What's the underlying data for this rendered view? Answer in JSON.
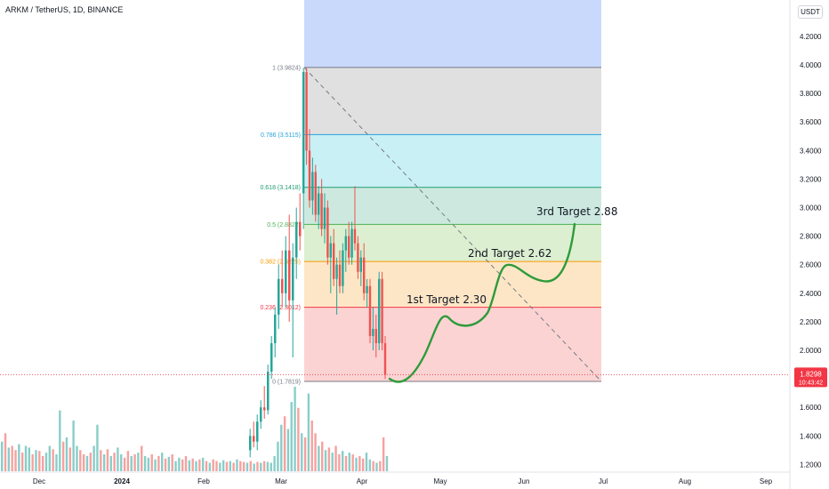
{
  "header": {
    "title": "ARKM / TetherUS, 1D, BINANCE",
    "unit": "USDT"
  },
  "price_badge": {
    "value": "1.8298",
    "countdown": "10:43:42",
    "color": "#f23645"
  },
  "colors": {
    "up": "#26a69a",
    "down": "#ef5350",
    "path": "#2e9b3a"
  },
  "chart_data": {
    "type": "candlestick",
    "title": "ARKM / TetherUS, 1D, BINANCE",
    "y_axis": {
      "ticks": [
        "4.2000",
        "4.0000",
        "3.8000",
        "3.6000",
        "3.4000",
        "3.2000",
        "3.0000",
        "2.8000",
        "2.6000",
        "2.4000",
        "2.2000",
        "2.0000",
        "1.8000",
        "1.6000",
        "1.4000",
        "1.2000"
      ],
      "range": [
        1.18,
        4.4
      ]
    },
    "x_axis": {
      "ticks": [
        "Dec",
        "2024",
        "Feb",
        "Mar",
        "Apr",
        "May",
        "Jun",
        "Jul",
        "Aug",
        "Sep"
      ]
    },
    "last_price": 1.8298,
    "fibonacci": [
      {
        "level": "1",
        "price": 3.9824,
        "label": "1 (3.9824)",
        "color": "#787b86",
        "fill": "#e0e0e0"
      },
      {
        "level": "0.786",
        "price": 3.5115,
        "label": "0.786 (3.5115)",
        "color": "#26a2d9",
        "fill": "#c9f0f5"
      },
      {
        "level": "0.618",
        "price": 3.1418,
        "label": "0.618 (3.1418)",
        "color": "#1e9b6e",
        "fill": "#cde9df"
      },
      {
        "level": "0.5",
        "price": 2.8822,
        "label": "0.5 (2.8822)",
        "color": "#4caf50",
        "fill": "#dcefd0"
      },
      {
        "level": "0.382",
        "price": 2.6225,
        "label": "0.382 (2.6225)",
        "color": "#ff9800",
        "fill": "#fde6c6"
      },
      {
        "level": "0.236",
        "price": 2.3012,
        "label": "0.236 (2.3012)",
        "color": "#f23645",
        "fill": "#fbd3d3"
      },
      {
        "level": "0",
        "price": 1.7819,
        "label": "0 (1.7819)",
        "color": "#787b86",
        "fill": "#fbd3d3"
      }
    ],
    "fib_extension_fill": "#c8d9fb",
    "targets": [
      {
        "label": "1st Target 2.30",
        "price": 2.3
      },
      {
        "label": "2nd Target 2.62",
        "price": 2.62
      },
      {
        "label": "3rd Target 2.88",
        "price": 2.88
      }
    ],
    "candles": [
      {
        "o": 3.1,
        "h": 3.98,
        "l": 2.85,
        "c": 3.95
      },
      {
        "o": 3.95,
        "h": 3.98,
        "l": 3.3,
        "c": 3.4
      },
      {
        "o": 3.4,
        "h": 3.55,
        "l": 3.0,
        "c": 3.05
      },
      {
        "o": 3.05,
        "h": 3.35,
        "l": 2.95,
        "c": 3.25
      },
      {
        "o": 3.25,
        "h": 3.3,
        "l": 2.9,
        "c": 2.95
      },
      {
        "o": 2.95,
        "h": 3.15,
        "l": 2.85,
        "c": 3.1
      },
      {
        "o": 3.1,
        "h": 3.2,
        "l": 2.8,
        "c": 2.85
      },
      {
        "o": 2.85,
        "h": 3.1,
        "l": 2.75,
        "c": 3.0
      },
      {
        "o": 3.0,
        "h": 3.05,
        "l": 2.6,
        "c": 2.65
      },
      {
        "o": 2.65,
        "h": 2.8,
        "l": 2.4,
        "c": 2.75
      },
      {
        "o": 2.75,
        "h": 2.85,
        "l": 2.45,
        "c": 2.5
      },
      {
        "o": 2.5,
        "h": 2.65,
        "l": 2.25,
        "c": 2.6
      },
      {
        "o": 2.6,
        "h": 2.7,
        "l": 2.4,
        "c": 2.45
      },
      {
        "o": 2.45,
        "h": 2.75,
        "l": 2.4,
        "c": 2.7
      },
      {
        "o": 2.7,
        "h": 2.85,
        "l": 2.55,
        "c": 2.8
      },
      {
        "o": 2.8,
        "h": 2.9,
        "l": 2.6,
        "c": 2.65
      },
      {
        "o": 2.65,
        "h": 2.9,
        "l": 2.6,
        "c": 2.85
      },
      {
        "o": 2.85,
        "h": 3.15,
        "l": 2.7,
        "c": 2.75
      },
      {
        "o": 2.75,
        "h": 2.8,
        "l": 2.5,
        "c": 2.55
      },
      {
        "o": 2.55,
        "h": 2.7,
        "l": 2.45,
        "c": 2.65
      },
      {
        "o": 2.65,
        "h": 2.75,
        "l": 2.35,
        "c": 2.4
      },
      {
        "o": 2.4,
        "h": 2.5,
        "l": 2.3,
        "c": 2.45
      },
      {
        "o": 2.45,
        "h": 2.5,
        "l": 2.05,
        "c": 2.1
      },
      {
        "o": 2.1,
        "h": 2.3,
        "l": 2.0,
        "c": 2.15
      },
      {
        "o": 2.15,
        "h": 2.25,
        "l": 1.95,
        "c": 2.05
      },
      {
        "o": 2.05,
        "h": 2.55,
        "l": 2.0,
        "c": 2.5
      },
      {
        "o": 2.5,
        "h": 2.55,
        "l": 2.0,
        "c": 2.05
      },
      {
        "o": 2.05,
        "h": 2.1,
        "l": 1.8,
        "c": 1.83
      }
    ],
    "volume": [
      0.35,
      0.45,
      0.28,
      0.3,
      0.25,
      0.32,
      0.22,
      0.3,
      0.28,
      0.2,
      0.25,
      0.24,
      0.18,
      0.22,
      0.3,
      0.26,
      0.2,
      0.72,
      0.35,
      0.4,
      0.28,
      0.6,
      0.3,
      0.25,
      0.2,
      0.18,
      0.22,
      0.3,
      0.55,
      0.25,
      0.2,
      0.26,
      0.18,
      0.22,
      0.28,
      0.2,
      0.16,
      0.24,
      0.18,
      0.2,
      0.22,
      0.3,
      0.18,
      0.16,
      0.2,
      0.14,
      0.18,
      0.22,
      0.15,
      0.17,
      0.2,
      0.12,
      0.16,
      0.14,
      0.18,
      0.13,
      0.15,
      0.12,
      0.14,
      0.16,
      0.12,
      0.1,
      0.14,
      0.12,
      0.1,
      0.13,
      0.11,
      0.12,
      0.1,
      0.14,
      0.12,
      0.11,
      0.1,
      0.12,
      0.09,
      0.11,
      0.1,
      0.12,
      0.11,
      0.1,
      0.18,
      0.35,
      0.55,
      0.65,
      0.5,
      0.82,
      1.0,
      0.75,
      0.45,
      0.4,
      0.92,
      0.6,
      0.45,
      0.3,
      0.35,
      0.25,
      0.28,
      0.22,
      0.3,
      0.2,
      0.24,
      0.18,
      0.22,
      0.2,
      0.16,
      0.18,
      0.15,
      0.22,
      0.14,
      0.12,
      0.1,
      0.12,
      0.4,
      0.18
    ],
    "volume_up_pattern": [
      1,
      0,
      1,
      0,
      0,
      1,
      0,
      1,
      1,
      0,
      1,
      0,
      0,
      1,
      1,
      0,
      1,
      1,
      0,
      1,
      0,
      1,
      1,
      0,
      0,
      1,
      0,
      1,
      1,
      0,
      1,
      0,
      1,
      0,
      1,
      1,
      0,
      0,
      1,
      0,
      1,
      0,
      1,
      1,
      0,
      1,
      0,
      1,
      0,
      1,
      0,
      1,
      1,
      0,
      0,
      1,
      0,
      1,
      0,
      1,
      0,
      1,
      0,
      0,
      1,
      1,
      0,
      1,
      0,
      1,
      0,
      0,
      1,
      0,
      1,
      0,
      1,
      0,
      1,
      1,
      1,
      1,
      1,
      0,
      1,
      1,
      1,
      0,
      1,
      0,
      1,
      0,
      0,
      1,
      0,
      1,
      0,
      1,
      0,
      0,
      1,
      0,
      1,
      0,
      1,
      0,
      0,
      1,
      1,
      0,
      1,
      0,
      0,
      1
    ]
  }
}
